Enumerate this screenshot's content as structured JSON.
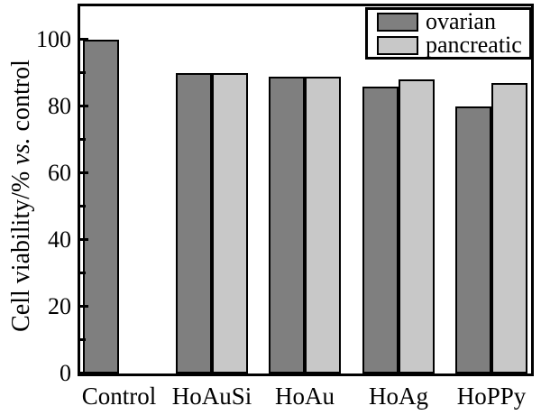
{
  "figure": {
    "background": "#ffffff",
    "frame_color": "#000000",
    "text_color": "#000000"
  },
  "chart_data": {
    "type": "bar",
    "title": "",
    "xlabel": "",
    "ylabel": "Cell viability/% vs. control",
    "ylabel_parts": [
      "Cell viability/% ",
      "vs.",
      " control"
    ],
    "categories": [
      "Control",
      "HoAuSi",
      "HoAu",
      "HoAg",
      "HoPPy"
    ],
    "series": [
      {
        "name": "ovarian",
        "color": "#7f7f7f",
        "values": [
          100,
          90,
          89,
          86,
          80
        ]
      },
      {
        "name": "pancreatic",
        "color": "#c8c8c8",
        "values": [
          null,
          90,
          89,
          88,
          87
        ]
      }
    ],
    "ylim": [
      0,
      110
    ],
    "yticks_major": [
      0,
      20,
      40,
      60,
      80,
      100
    ],
    "yticks_minor": [
      10,
      30,
      50,
      70,
      90
    ],
    "grid": false,
    "legend_position": "top-right",
    "bar_border_color": "#000000",
    "axis_frame": "full-box"
  }
}
